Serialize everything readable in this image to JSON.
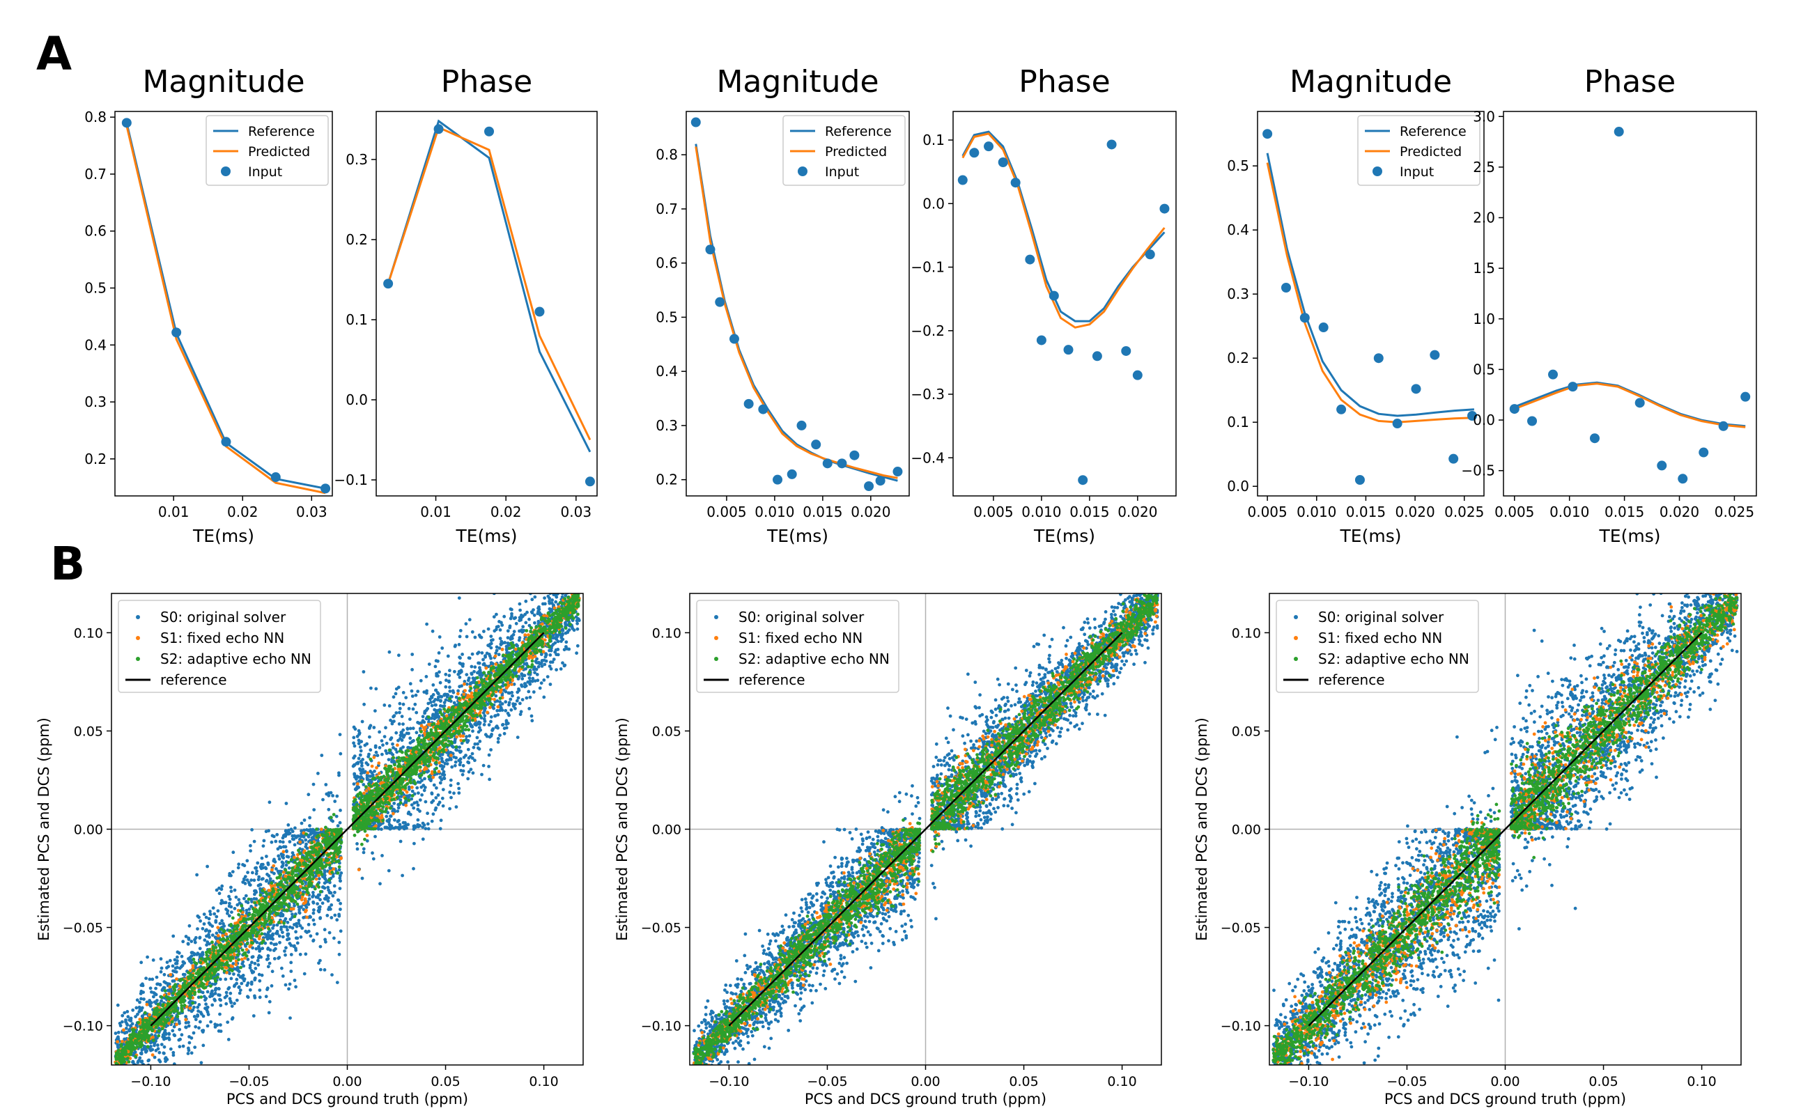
{
  "panel_labels": {
    "a": "A",
    "b": "B"
  },
  "colors": {
    "reference": "#1f77b4",
    "predicted": "#ff7f0e",
    "input": "#1f77b4",
    "s0": "#1f77b4",
    "s1": "#ff7f0e",
    "s2": "#2ca02c",
    "ref_line": "#000000"
  },
  "legend_a": {
    "reference": "Reference",
    "predicted": "Predicted",
    "input": "Input"
  },
  "legend_b": {
    "s0": "S0: original solver",
    "s1": "S1: fixed echo NN",
    "s2": "S2: adaptive echo NN",
    "ref": "reference"
  },
  "chart_data": [
    {
      "type": "line",
      "title": "Magnitude",
      "xlabel": "TE(ms)",
      "ylabel": "",
      "legend": "top-right",
      "xlim": [
        0.0015,
        0.033
      ],
      "ylim": [
        0.135,
        0.81
      ],
      "xticks": [
        0.01,
        0.02,
        0.03
      ],
      "xtick_labels": [
        "0.01",
        "0.02",
        "0.03"
      ],
      "yticks": [
        0.2,
        0.3,
        0.4,
        0.5,
        0.6,
        0.7,
        0.8
      ],
      "ytick_labels": [
        "0.2",
        "0.3",
        "0.4",
        "0.5",
        "0.6",
        "0.7",
        "0.8"
      ],
      "series": [
        {
          "name": "Reference",
          "x": [
            0.0032,
            0.0104,
            0.0176,
            0.0248,
            0.032
          ],
          "y": [
            0.79,
            0.42,
            0.228,
            0.165,
            0.148
          ]
        },
        {
          "name": "Predicted",
          "x": [
            0.0032,
            0.0104,
            0.0176,
            0.0248,
            0.032
          ],
          "y": [
            0.785,
            0.41,
            0.222,
            0.158,
            0.14
          ]
        },
        {
          "name": "Input",
          "x": [
            0.0032,
            0.0104,
            0.0176,
            0.0248,
            0.032
          ],
          "y": [
            0.79,
            0.422,
            0.23,
            0.168,
            0.148
          ]
        }
      ]
    },
    {
      "type": "line",
      "title": "Phase",
      "xlabel": "TE(ms)",
      "ylabel": "",
      "legend": "none",
      "xlim": [
        0.0015,
        0.033
      ],
      "ylim": [
        -0.12,
        0.36
      ],
      "xticks": [
        0.01,
        0.02,
        0.03
      ],
      "xtick_labels": [
        "0.01",
        "0.02",
        "0.03"
      ],
      "yticks": [
        -0.1,
        0.0,
        0.1,
        0.2,
        0.3
      ],
      "ytick_labels": [
        "−0.1",
        "0.0",
        "0.1",
        "0.2",
        "0.3"
      ],
      "series": [
        {
          "name": "Reference",
          "x": [
            0.0032,
            0.0104,
            0.0176,
            0.0248,
            0.032
          ],
          "y": [
            0.145,
            0.348,
            0.302,
            0.06,
            -0.065
          ]
        },
        {
          "name": "Predicted",
          "x": [
            0.0032,
            0.0104,
            0.0176,
            0.0248,
            0.032
          ],
          "y": [
            0.145,
            0.34,
            0.312,
            0.08,
            -0.05
          ]
        },
        {
          "name": "Input",
          "x": [
            0.0032,
            0.0104,
            0.0176,
            0.0248,
            0.032
          ],
          "y": [
            0.145,
            0.338,
            0.335,
            0.11,
            -0.102
          ]
        }
      ]
    },
    {
      "type": "line",
      "title": "Magnitude",
      "xlabel": "TE(ms)",
      "ylabel": "",
      "legend": "top-right",
      "xlim": [
        0.0008,
        0.024
      ],
      "ylim": [
        0.17,
        0.88
      ],
      "xticks": [
        0.005,
        0.01,
        0.015,
        0.02
      ],
      "xtick_labels": [
        "0.005",
        "0.010",
        "0.015",
        "0.020"
      ],
      "yticks": [
        0.2,
        0.3,
        0.4,
        0.5,
        0.6,
        0.7,
        0.8
      ],
      "ytick_labels": [
        "0.2",
        "0.3",
        "0.4",
        "0.5",
        "0.6",
        "0.7",
        "0.8"
      ],
      "series": [
        {
          "name": "Reference",
          "x": [
            0.0018,
            0.0033,
            0.0048,
            0.0063,
            0.0078,
            0.0093,
            0.0108,
            0.0123,
            0.0138,
            0.0153,
            0.0168,
            0.0183,
            0.0198,
            0.0213,
            0.0228
          ],
          "y": [
            0.82,
            0.65,
            0.53,
            0.44,
            0.375,
            0.33,
            0.29,
            0.265,
            0.25,
            0.237,
            0.228,
            0.22,
            0.212,
            0.205,
            0.198
          ]
        },
        {
          "name": "Predicted",
          "x": [
            0.0018,
            0.0033,
            0.0048,
            0.0063,
            0.0078,
            0.0093,
            0.0108,
            0.0123,
            0.0138,
            0.0153,
            0.0168,
            0.0183,
            0.0198,
            0.0213,
            0.0228
          ],
          "y": [
            0.815,
            0.64,
            0.525,
            0.435,
            0.37,
            0.325,
            0.285,
            0.262,
            0.248,
            0.238,
            0.23,
            0.222,
            0.215,
            0.208,
            0.203
          ]
        },
        {
          "name": "Input",
          "x": [
            0.0018,
            0.0033,
            0.0043,
            0.0058,
            0.0073,
            0.0088,
            0.0103,
            0.0118,
            0.0128,
            0.0143,
            0.0155,
            0.017,
            0.0183,
            0.0198,
            0.021,
            0.0228
          ],
          "y": [
            0.86,
            0.625,
            0.528,
            0.46,
            0.34,
            0.33,
            0.2,
            0.21,
            0.3,
            0.265,
            0.23,
            0.23,
            0.245,
            0.188,
            0.198,
            0.215
          ]
        }
      ]
    },
    {
      "type": "line",
      "title": "Phase",
      "xlabel": "TE(ms)",
      "ylabel": "",
      "legend": "none",
      "xlim": [
        0.0008,
        0.024
      ],
      "ylim": [
        -0.46,
        0.145
      ],
      "xticks": [
        0.005,
        0.01,
        0.015,
        0.02
      ],
      "xtick_labels": [
        "0.005",
        "0.010",
        "0.015",
        "0.020"
      ],
      "yticks": [
        -0.4,
        -0.3,
        -0.2,
        -0.1,
        0.0,
        0.1
      ],
      "ytick_labels": [
        "−0.4",
        "−0.3",
        "−0.2",
        "−0.1",
        "0.0",
        "0.1"
      ],
      "series": [
        {
          "name": "Reference",
          "x": [
            0.0018,
            0.003,
            0.0045,
            0.006,
            0.0075,
            0.009,
            0.0105,
            0.012,
            0.0135,
            0.015,
            0.0165,
            0.018,
            0.0195,
            0.021,
            0.0228
          ],
          "y": [
            0.075,
            0.108,
            0.113,
            0.09,
            0.035,
            -0.04,
            -0.12,
            -0.17,
            -0.185,
            -0.185,
            -0.165,
            -0.13,
            -0.1,
            -0.075,
            -0.045
          ]
        },
        {
          "name": "Predicted",
          "x": [
            0.0018,
            0.003,
            0.0045,
            0.006,
            0.0075,
            0.009,
            0.0105,
            0.012,
            0.0135,
            0.015,
            0.0165,
            0.018,
            0.0195,
            0.021,
            0.0228
          ],
          "y": [
            0.072,
            0.105,
            0.11,
            0.085,
            0.03,
            -0.048,
            -0.13,
            -0.18,
            -0.195,
            -0.19,
            -0.17,
            -0.135,
            -0.102,
            -0.072,
            -0.038
          ]
        },
        {
          "name": "Input",
          "x": [
            0.0018,
            0.003,
            0.0045,
            0.006,
            0.0073,
            0.0088,
            0.01,
            0.0113,
            0.0128,
            0.0143,
            0.0158,
            0.0173,
            0.0188,
            0.02,
            0.0213,
            0.0228
          ],
          "y": [
            0.037,
            0.08,
            0.09,
            0.065,
            0.033,
            -0.088,
            -0.215,
            -0.145,
            -0.23,
            -0.435,
            -0.24,
            0.093,
            -0.232,
            -0.27,
            -0.08,
            -0.008
          ]
        }
      ]
    },
    {
      "type": "line",
      "title": "Magnitude",
      "xlabel": "TE(ms)",
      "ylabel": "",
      "legend": "top-right",
      "xlim": [
        0.004,
        0.027
      ],
      "ylim": [
        -0.015,
        0.585
      ],
      "xticks": [
        0.005,
        0.01,
        0.015,
        0.02,
        0.025
      ],
      "xtick_labels": [
        "0.005",
        "0.010",
        "0.015",
        "0.020",
        "0.025"
      ],
      "yticks": [
        0.0,
        0.1,
        0.2,
        0.3,
        0.4,
        0.5
      ],
      "ytick_labels": [
        "0.0",
        "0.1",
        "0.2",
        "0.3",
        "0.4",
        "0.5"
      ],
      "series": [
        {
          "name": "Reference",
          "x": [
            0.005,
            0.007,
            0.0088,
            0.0106,
            0.0125,
            0.0144,
            0.0163,
            0.0182,
            0.0201,
            0.022,
            0.024,
            0.026
          ],
          "y": [
            0.52,
            0.37,
            0.27,
            0.195,
            0.15,
            0.125,
            0.113,
            0.11,
            0.112,
            0.115,
            0.118,
            0.12
          ]
        },
        {
          "name": "Predicted",
          "x": [
            0.005,
            0.007,
            0.0088,
            0.0106,
            0.0125,
            0.0144,
            0.0163,
            0.0182,
            0.0201,
            0.022,
            0.024,
            0.026
          ],
          "y": [
            0.505,
            0.36,
            0.255,
            0.18,
            0.135,
            0.112,
            0.102,
            0.1,
            0.102,
            0.104,
            0.106,
            0.107
          ]
        },
        {
          "name": "Input",
          "x": [
            0.005,
            0.0069,
            0.0088,
            0.0107,
            0.0125,
            0.0144,
            0.0163,
            0.0182,
            0.0201,
            0.022,
            0.0239,
            0.0258
          ],
          "y": [
            0.55,
            0.31,
            0.263,
            0.248,
            0.12,
            0.01,
            0.2,
            0.098,
            0.152,
            0.205,
            0.043,
            0.11
          ]
        }
      ]
    },
    {
      "type": "line",
      "title": "Phase",
      "xlabel": "TE(ms)",
      "ylabel": "",
      "legend": "none",
      "xlim": [
        0.004,
        0.027
      ],
      "ylim": [
        -0.75,
        3.05
      ],
      "xticks": [
        0.005,
        0.01,
        0.015,
        0.02,
        0.025
      ],
      "xtick_labels": [
        "0.005",
        "0.010",
        "0.015",
        "0.020",
        "0.025"
      ],
      "yticks": [
        -0.5,
        0.0,
        0.5,
        1.0,
        1.5,
        2.0,
        2.5,
        3.0
      ],
      "ytick_labels": [
        "−0.5",
        "0.0",
        "0.5",
        "1.0",
        "1.5",
        "2.0",
        "2.5",
        "3.0"
      ],
      "series": [
        {
          "name": "Reference",
          "x": [
            0.005,
            0.0069,
            0.0088,
            0.0106,
            0.0125,
            0.0144,
            0.0163,
            0.0182,
            0.0201,
            0.022,
            0.024,
            0.026
          ],
          "y": [
            0.13,
            0.21,
            0.29,
            0.35,
            0.37,
            0.34,
            0.25,
            0.15,
            0.06,
            0.0,
            -0.04,
            -0.06
          ]
        },
        {
          "name": "Predicted",
          "x": [
            0.005,
            0.0069,
            0.0088,
            0.0106,
            0.0125,
            0.0144,
            0.0163,
            0.0182,
            0.0201,
            0.022,
            0.024,
            0.026
          ],
          "y": [
            0.11,
            0.19,
            0.27,
            0.34,
            0.36,
            0.33,
            0.24,
            0.14,
            0.05,
            -0.01,
            -0.05,
            -0.07
          ]
        },
        {
          "name": "Input",
          "x": [
            0.005,
            0.0066,
            0.0085,
            0.0103,
            0.0123,
            0.0145,
            0.0164,
            0.0184,
            0.0203,
            0.0222,
            0.024,
            0.026
          ],
          "y": [
            0.11,
            -0.01,
            0.45,
            0.33,
            -0.18,
            2.85,
            0.17,
            -0.45,
            -0.58,
            -0.32,
            -0.06,
            0.23
          ]
        }
      ]
    },
    {
      "type": "scatter",
      "title": "",
      "xlabel": "PCS and DCS ground truth (ppm)",
      "ylabel": "Estimated PCS and DCS (ppm)",
      "legend": "top-left",
      "xlim": [
        -0.12,
        0.12
      ],
      "ylim": [
        -0.12,
        0.12
      ],
      "xticks": [
        -0.1,
        -0.05,
        0.0,
        0.05,
        0.1
      ],
      "xtick_labels": [
        "−0.10",
        "−0.05",
        "0.00",
        "0.05",
        "0.10"
      ],
      "yticks": [
        -0.1,
        -0.05,
        0.0,
        0.05,
        0.1
      ],
      "ytick_labels": [
        "−0.10",
        "−0.05",
        "0.00",
        "0.05",
        "0.10"
      ],
      "series": [
        {
          "name": "S0: original solver",
          "approx_points": 4000,
          "trend": "y ≈ x with wide spread near |x| < 0.05"
        },
        {
          "name": "S1: fixed echo NN",
          "approx_points": 1300,
          "trend": "y ≈ x, tight"
        },
        {
          "name": "S2: adaptive echo NN",
          "approx_points": 2500,
          "trend": "y ≈ x, tight"
        },
        {
          "name": "reference",
          "x": [
            -0.1,
            0.1
          ],
          "y": [
            -0.1,
            0.1
          ]
        }
      ]
    },
    {
      "type": "scatter",
      "title": "",
      "xlabel": "PCS and DCS ground truth (ppm)",
      "ylabel": "Estimated PCS and DCS (ppm)",
      "legend": "top-left",
      "xlim": [
        -0.12,
        0.12
      ],
      "ylim": [
        -0.12,
        0.12
      ],
      "xticks": [
        -0.1,
        -0.05,
        0.0,
        0.05,
        0.1
      ],
      "xtick_labels": [
        "−0.10",
        "−0.05",
        "0.00",
        "0.05",
        "0.10"
      ],
      "yticks": [
        -0.1,
        -0.05,
        0.0,
        0.05,
        0.1
      ],
      "ytick_labels": [
        "−0.10",
        "−0.05",
        "0.00",
        "0.05",
        "0.10"
      ],
      "series": [
        {
          "name": "S0: original solver",
          "approx_points": 4000,
          "trend": "y ≈ x with moderate spread"
        },
        {
          "name": "S1: fixed echo NN",
          "approx_points": 1300,
          "trend": "y ≈ x, tight"
        },
        {
          "name": "S2: adaptive echo NN",
          "approx_points": 2500,
          "trend": "y ≈ x, tight"
        },
        {
          "name": "reference",
          "x": [
            -0.1,
            0.1
          ],
          "y": [
            -0.1,
            0.1
          ]
        }
      ]
    },
    {
      "type": "scatter",
      "title": "",
      "xlabel": "PCS and DCS ground truth (ppm)",
      "ylabel": "Estimated PCS and DCS (ppm)",
      "legend": "top-left",
      "xlim": [
        -0.12,
        0.12
      ],
      "ylim": [
        -0.12,
        0.12
      ],
      "xticks": [
        -0.1,
        -0.05,
        0.0,
        0.05,
        0.1
      ],
      "xtick_labels": [
        "−0.10",
        "−0.05",
        "0.00",
        "0.05",
        "0.10"
      ],
      "yticks": [
        -0.1,
        -0.05,
        0.0,
        0.05,
        0.1
      ],
      "ytick_labels": [
        "−0.10",
        "−0.05",
        "0.00",
        "0.05",
        "0.10"
      ],
      "series": [
        {
          "name": "S0: original solver",
          "approx_points": 4000,
          "trend": "y ≈ x with wide spread"
        },
        {
          "name": "S1: fixed echo NN",
          "approx_points": 1300,
          "trend": "y ≈ x, moderate"
        },
        {
          "name": "S2: adaptive echo NN",
          "approx_points": 2500,
          "trend": "y ≈ x, tight"
        },
        {
          "name": "reference",
          "x": [
            -0.1,
            0.1
          ],
          "y": [
            -0.1,
            0.1
          ]
        }
      ]
    }
  ]
}
